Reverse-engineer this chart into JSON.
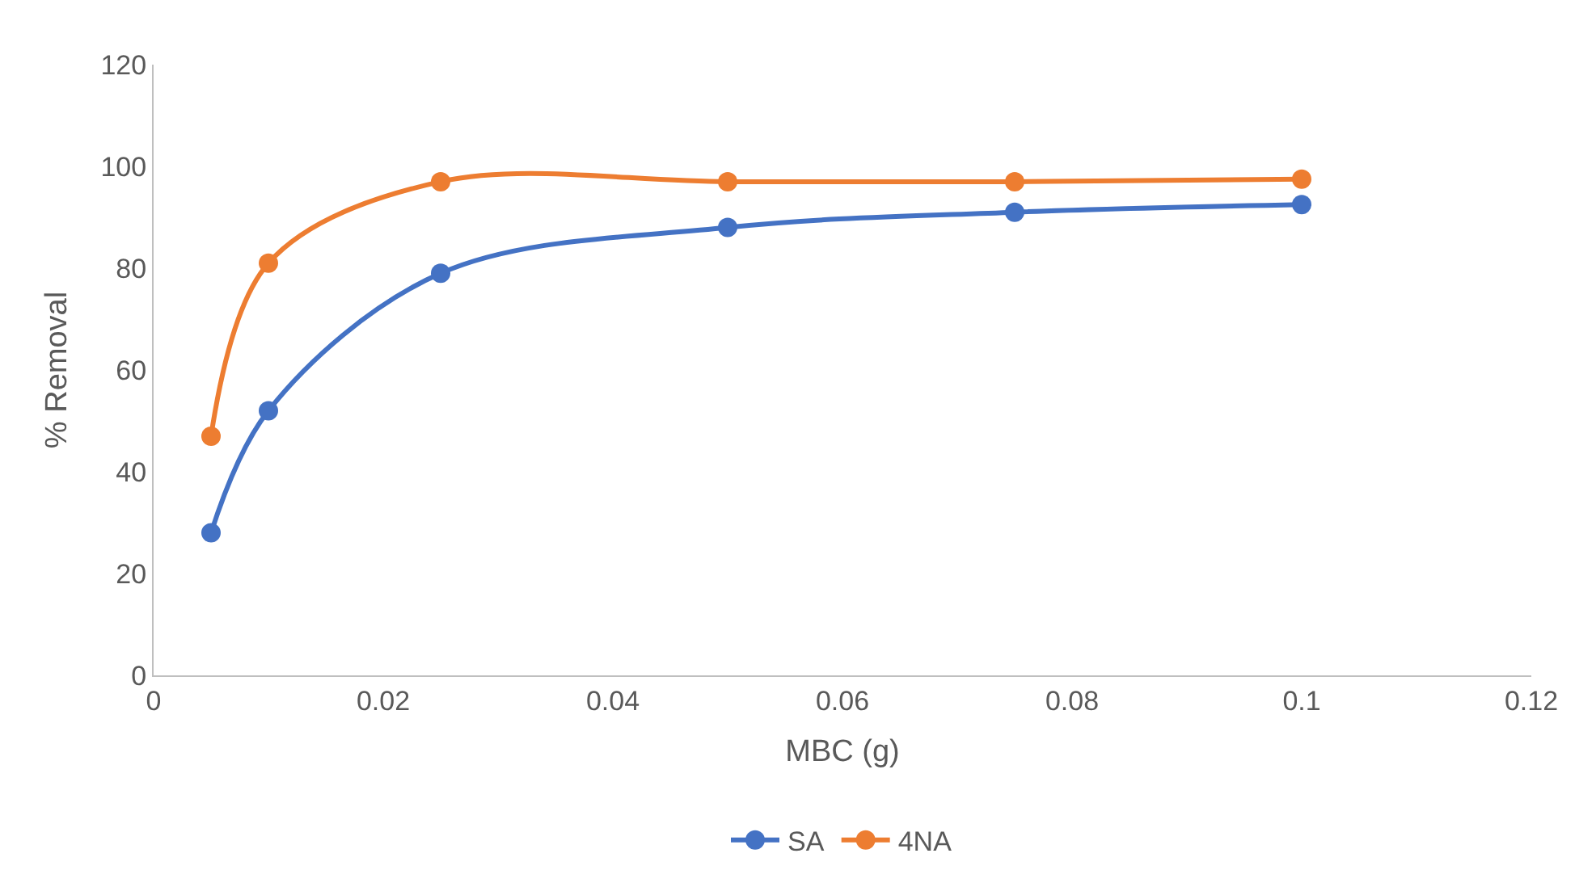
{
  "chart_data": {
    "type": "line",
    "xlabel": "MBC (g)",
    "ylabel": "% Removal",
    "x": [
      0.005,
      0.01,
      0.025,
      0.05,
      0.075,
      0.1
    ],
    "series": [
      {
        "name": "SA",
        "color": "#4472c4",
        "values": [
          28,
          52,
          79,
          88,
          91,
          92.5
        ]
      },
      {
        "name": "4NA",
        "color": "#ed7d31",
        "values": [
          47,
          81,
          97,
          97,
          97,
          97.5
        ]
      }
    ],
    "xlim": [
      0,
      0.12
    ],
    "xticks": [
      0,
      0.02,
      0.04,
      0.06,
      0.08,
      0.1,
      0.12
    ],
    "ylim": [
      0,
      120
    ],
    "yticks": [
      0,
      20,
      40,
      60,
      80,
      100,
      120
    ],
    "grid": false,
    "legend": "bottom",
    "marker": "circle",
    "line_style": "solid"
  }
}
